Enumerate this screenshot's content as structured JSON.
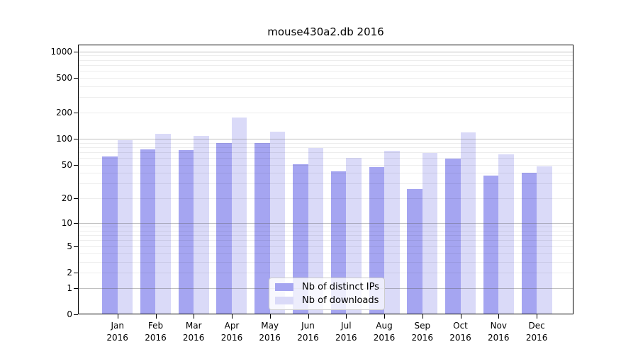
{
  "title": "mouse430a2.db 2016",
  "legend": {
    "items": [
      {
        "label": "Nb of distinct IPs",
        "color": "#a5a5f1"
      },
      {
        "label": "Nb of downloads",
        "color": "#dadaf8"
      }
    ]
  },
  "chart_data": {
    "type": "bar",
    "title": "mouse430a2.db 2016",
    "categories": [
      "Jan",
      "Feb",
      "Mar",
      "Apr",
      "May",
      "Jun",
      "Jul",
      "Aug",
      "Sep",
      "Oct",
      "Nov",
      "Dec"
    ],
    "year_label": "2016",
    "series": [
      {
        "name": "Nb of distinct IPs",
        "color": "#a5a5f1",
        "values": [
          62,
          76,
          74,
          90,
          90,
          51,
          42,
          47,
          26,
          59,
          37,
          40
        ]
      },
      {
        "name": "Nb of downloads",
        "color": "#dadaf8",
        "values": [
          96,
          113,
          107,
          175,
          120,
          78,
          60,
          72,
          68,
          118,
          66,
          48
        ]
      }
    ],
    "y_scale": "log10(value+1)",
    "y_ticks": [
      0,
      1,
      2,
      5,
      10,
      20,
      50,
      100,
      200,
      500,
      1000
    ],
    "ylim": [
      0,
      1000
    ],
    "xlabel": "",
    "ylabel": "",
    "grid": true,
    "grid_on_top_of_bars": true,
    "legend_position": "lower center"
  },
  "colors": {
    "background": "#ffffff",
    "bar_ips": "#a5a5f1",
    "bar_downloads": "#dadaf8",
    "grid_major": "#b9b9b9",
    "grid_minor": "#ececec",
    "axis": "#000000",
    "legend_border": "#cccccc"
  }
}
